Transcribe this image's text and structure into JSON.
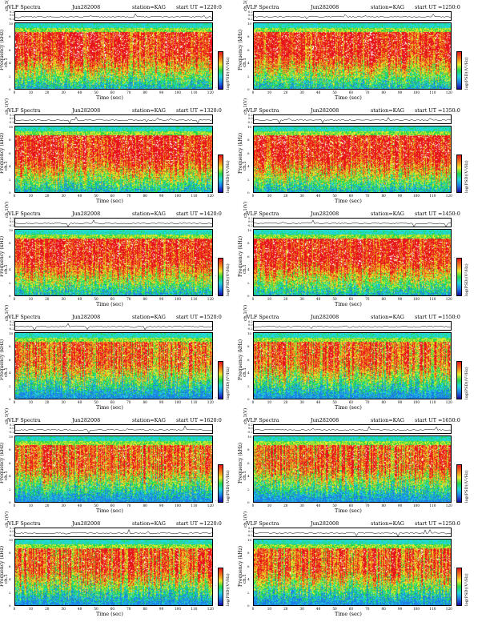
{
  "common": {
    "title": "VLF Spectra",
    "date": "Jun282008",
    "station": "station=KAG",
    "channel_label": "ch.1(V)",
    "ylabel_top": "ch.1",
    "ylabel": "Frequency (kHz)",
    "xlabel": "Time (sec)",
    "colorbar_label": "log(PSD)(V²/Hz)",
    "ch_ticks": [
      "0.20",
      "0.00",
      "-0.20"
    ],
    "y_ticks": [
      "10",
      "8",
      "6",
      "4",
      "2",
      "0"
    ],
    "x_ticks": [
      "0",
      "10",
      "20",
      "30",
      "40",
      "50",
      "60",
      "70",
      "80",
      "90",
      "100",
      "110",
      "120"
    ],
    "cbar_ticks": [
      "-",
      "-",
      "-"
    ]
  },
  "chart_data": [
    {
      "type": "heatmap",
      "start_ut": "start UT =1220:0",
      "x_range": [
        0,
        120
      ],
      "y_range": [
        0,
        10
      ]
    },
    {
      "type": "heatmap",
      "start_ut": "start UT =1250:0",
      "x_range": [
        0,
        120
      ],
      "y_range": [
        0,
        10
      ]
    },
    {
      "type": "heatmap",
      "start_ut": "start UT =1320:0",
      "x_range": [
        0,
        120
      ],
      "y_range": [
        0,
        10
      ]
    },
    {
      "type": "heatmap",
      "start_ut": "start UT =1350:0",
      "x_range": [
        0,
        120
      ],
      "y_range": [
        0,
        10
      ]
    },
    {
      "type": "heatmap",
      "start_ut": "start UT =1420:0",
      "x_range": [
        0,
        120
      ],
      "y_range": [
        0,
        10
      ]
    },
    {
      "type": "heatmap",
      "start_ut": "start UT =1450:0",
      "x_range": [
        0,
        120
      ],
      "y_range": [
        0,
        10
      ]
    },
    {
      "type": "heatmap",
      "start_ut": "start UT =1520:0",
      "x_range": [
        0,
        120
      ],
      "y_range": [
        0,
        10
      ]
    },
    {
      "type": "heatmap",
      "start_ut": "start UT =1550:0",
      "x_range": [
        0,
        120
      ],
      "y_range": [
        0,
        10
      ]
    },
    {
      "type": "heatmap",
      "start_ut": "start UT =1620:0",
      "x_range": [
        0,
        120
      ],
      "y_range": [
        0,
        10
      ]
    },
    {
      "type": "heatmap",
      "start_ut": "start UT =1650:0",
      "x_range": [
        0,
        120
      ],
      "y_range": [
        0,
        10
      ]
    },
    {
      "type": "heatmap",
      "start_ut": "start UT =1220:0",
      "x_range": [
        0,
        120
      ],
      "y_range": [
        0,
        10
      ]
    },
    {
      "type": "heatmap",
      "start_ut": "start UT =1250:0",
      "x_range": [
        0,
        120
      ],
      "y_range": [
        0,
        10
      ]
    }
  ],
  "colors": {
    "red": "#e8141c",
    "orange": "#f08a1c",
    "yellow": "#e8e82c",
    "green": "#26d84a",
    "cyan": "#23d6d6",
    "blue": "#1c7fe8",
    "navy": "#1a0aa8"
  }
}
